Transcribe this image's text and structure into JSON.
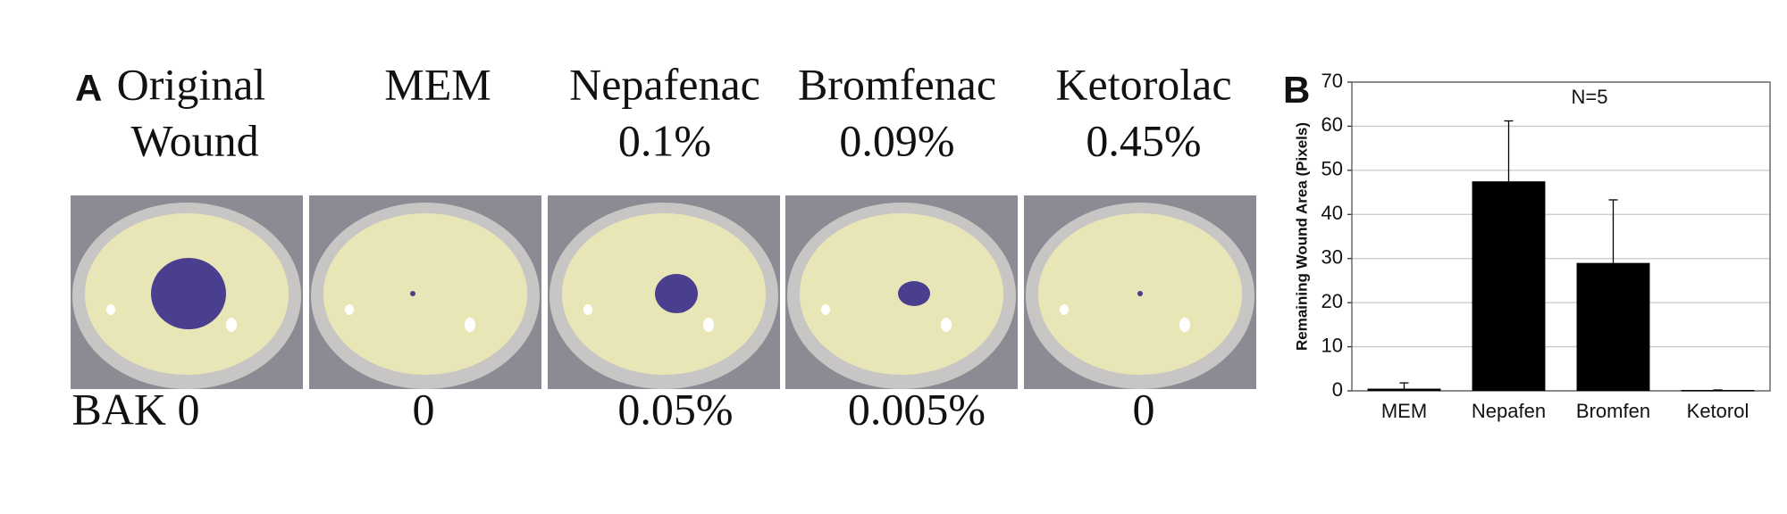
{
  "panel_a": {
    "label": "A",
    "headers": [
      [
        "Original",
        "Wound"
      ],
      [
        "MEM"
      ],
      [
        "Nepafenac",
        "0.1%"
      ],
      [
        "Bromfenac",
        "0.09%"
      ],
      [
        "Ketorolac",
        "0.45%"
      ]
    ],
    "footers": [
      "BAK 0",
      "0",
      "0.05%",
      "0.005%",
      "0"
    ]
  },
  "chart_data": {
    "type": "bar",
    "label": "B",
    "annotation": "N=5",
    "y_label": "Remaining Wound Area (Pixels)",
    "categories": [
      "MEM",
      "Nepafen",
      "Bromfen",
      "Ketorol"
    ],
    "values": [
      0.5,
      47.5,
      29,
      0.2
    ],
    "errors": [
      1.3,
      13.7,
      14.3,
      0
    ],
    "color": "#000000",
    "ylim": [
      0,
      70
    ],
    "yticks": [
      0,
      10,
      20,
      30,
      40,
      50,
      60,
      70
    ],
    "grid": true
  }
}
